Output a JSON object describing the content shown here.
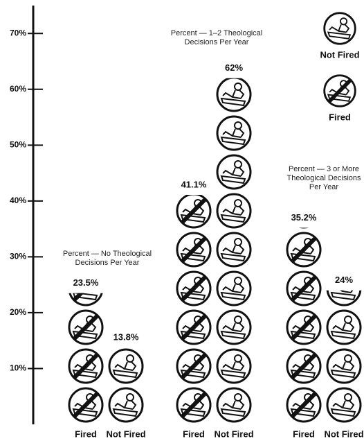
{
  "chart_data": {
    "type": "pictograph",
    "categories": [
      "Percent — No Theological Decisions Per Year",
      "Percent — 1–2 Theological Decisions Per Year",
      "Percent — 3 or More Theological Decisions Per Year"
    ],
    "series": [
      {
        "name": "Fired",
        "color": "#111111",
        "values": [
          23.5,
          41.1,
          35.2
        ],
        "value_labels": [
          "23.5%",
          "41.1%",
          "35.2%"
        ]
      },
      {
        "name": "Not Fired",
        "color": "#111111",
        "values": [
          13.8,
          62,
          24
        ],
        "value_labels": [
          "13.8%",
          "62%",
          "24%"
        ]
      }
    ],
    "ylim": [
      0,
      75
    ],
    "yticks": [
      {
        "value": 10,
        "label": "10%"
      },
      {
        "value": 20,
        "label": "20%"
      },
      {
        "value": 30,
        "label": "30%"
      },
      {
        "value": 40,
        "label": "40%"
      },
      {
        "value": 50,
        "label": "50%"
      },
      {
        "value": 60,
        "label": "60%"
      },
      {
        "value": 70,
        "label": "70%"
      }
    ]
  }
}
